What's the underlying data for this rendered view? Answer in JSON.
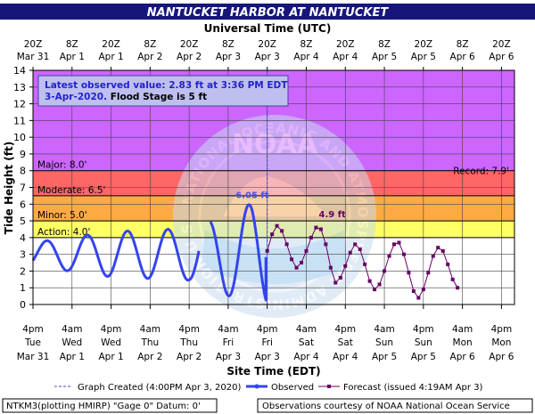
{
  "chart_data": {
    "type": "line",
    "title": "NANTUCKET HARBOR AT NANTUCKET",
    "top_axis_title": "Universal Time (UTC)",
    "xlabel": "Site Time (EDT)",
    "ylabel": "Tide Height (ft)",
    "ylim": [
      0,
      14
    ],
    "y_ticks": [
      0,
      1,
      2,
      3,
      4,
      5,
      6,
      7,
      8,
      9,
      10,
      11,
      12,
      13,
      14
    ],
    "grid": true,
    "x_start": "2020-03-31T16:00",
    "x_end": "2020-04-06T20:00",
    "bottom_ticks": [
      {
        "t": "2020-03-31T16:00",
        "line1": "4pm",
        "line2": "Tue",
        "line3": "Mar 31"
      },
      {
        "t": "2020-04-01T04:00",
        "line1": "4am",
        "line2": "Wed",
        "line3": "Apr 1"
      },
      {
        "t": "2020-04-01T16:00",
        "line1": "4pm",
        "line2": "Wed",
        "line3": "Apr 1"
      },
      {
        "t": "2020-04-02T04:00",
        "line1": "4am",
        "line2": "Thu",
        "line3": "Apr 2"
      },
      {
        "t": "2020-04-02T16:00",
        "line1": "4pm",
        "line2": "Thu",
        "line3": "Apr 2"
      },
      {
        "t": "2020-04-03T04:00",
        "line1": "4am",
        "line2": "Fri",
        "line3": "Apr 3"
      },
      {
        "t": "2020-04-03T16:00",
        "line1": "4pm",
        "line2": "Fri",
        "line3": "Apr 3"
      },
      {
        "t": "2020-04-04T04:00",
        "line1": "4am",
        "line2": "Sat",
        "line3": "Apr 4"
      },
      {
        "t": "2020-04-04T16:00",
        "line1": "4pm",
        "line2": "Sat",
        "line3": "Apr 4"
      },
      {
        "t": "2020-04-05T04:00",
        "line1": "4am",
        "line2": "Sun",
        "line3": "Apr 5"
      },
      {
        "t": "2020-04-05T16:00",
        "line1": "4pm",
        "line2": "Sun",
        "line3": "Apr 5"
      },
      {
        "t": "2020-04-06T04:00",
        "line1": "4am",
        "line2": "Mon",
        "line3": "Apr 6"
      },
      {
        "t": "2020-04-06T16:00",
        "line1": "4pm",
        "line2": "Mon",
        "line3": "Apr 6"
      }
    ],
    "top_ticks": [
      {
        "t": "2020-03-31T16:00",
        "line1": "20Z",
        "line2": "Mar 31"
      },
      {
        "t": "2020-04-01T04:00",
        "line1": "8Z",
        "line2": "Apr 1"
      },
      {
        "t": "2020-04-01T16:00",
        "line1": "20Z",
        "line2": "Apr 1"
      },
      {
        "t": "2020-04-02T04:00",
        "line1": "8Z",
        "line2": "Apr 2"
      },
      {
        "t": "2020-04-02T16:00",
        "line1": "20Z",
        "line2": "Apr 2"
      },
      {
        "t": "2020-04-03T04:00",
        "line1": "8Z",
        "line2": "Apr 3"
      },
      {
        "t": "2020-04-03T16:00",
        "line1": "20Z",
        "line2": "Apr 3"
      },
      {
        "t": "2020-04-04T04:00",
        "line1": "8Z",
        "line2": "Apr 4"
      },
      {
        "t": "2020-04-04T16:00",
        "line1": "20Z",
        "line2": "Apr 4"
      },
      {
        "t": "2020-04-05T04:00",
        "line1": "8Z",
        "line2": "Apr 5"
      },
      {
        "t": "2020-04-05T16:00",
        "line1": "20Z",
        "line2": "Apr 5"
      },
      {
        "t": "2020-04-06T04:00",
        "line1": "8Z",
        "line2": "Apr 6"
      },
      {
        "t": "2020-04-06T16:00",
        "line1": "20Z",
        "line2": "Apr 6"
      }
    ],
    "flood_categories": [
      {
        "name": "Major",
        "label": "Major: 8.0'",
        "from": 8,
        "to": 14,
        "color": "#cc66ff"
      },
      {
        "name": "Moderate",
        "label": "Moderate: 6.5'",
        "from": 6.5,
        "to": 8,
        "color": "#ff6666"
      },
      {
        "name": "Minor",
        "label": "Minor: 5.0'",
        "from": 5,
        "to": 6.5,
        "color": "#ffaa44"
      },
      {
        "name": "Action",
        "label": "Action: 4.0'",
        "from": 4,
        "to": 5,
        "color": "#ffff66"
      }
    ],
    "record": {
      "label": "Record: 7.9'",
      "value": 7.9
    },
    "graph_created": "2020-04-03T16:00",
    "info_box": {
      "line1": "Latest observed value: 2.83 ft at 3:36 PM EDT",
      "line2_date": "3-Apr-2020.",
      "line2_flood": "Flood Stage is 5 ft"
    },
    "annotations": [
      {
        "text": "6.05 ft",
        "t": "2020-04-03T11:24",
        "y": 6.05,
        "color": "#4455ee"
      },
      {
        "text": "4.9 ft",
        "t": "2020-04-04T12:00",
        "y": 4.9,
        "color": "#660066"
      }
    ],
    "tide_model": {
      "mean": 3.0,
      "period_hours": 12.42,
      "first_high": "2020-03-31T20:12",
      "observed_amplitudes": [
        {
          "t": "2020-03-31T16:00",
          "a": 0.7
        },
        {
          "t": "2020-04-01T16:00",
          "a": 1.35
        },
        {
          "t": "2020-04-02T16:00",
          "a": 1.55
        },
        {
          "t": "2020-04-03T11:24",
          "a": 3.05
        }
      ],
      "observed_gap": [
        "2020-04-02T19:00",
        "2020-04-02T22:30"
      ]
    },
    "series": [
      {
        "name": "Observed",
        "color": "#3344ee",
        "t_from": "2020-03-31T16:00",
        "t_to": "2020-04-03T15:36",
        "last_value": 2.83
      },
      {
        "name": "Forecast (issued 4:19AM Apr 3)",
        "color": "#660066",
        "points": [
          {
            "t": "2020-04-03T16:00",
            "y": 3.2
          },
          {
            "t": "2020-04-03T17:30",
            "y": 4.2
          },
          {
            "t": "2020-04-03T19:00",
            "y": 4.7
          },
          {
            "t": "2020-04-03T20:30",
            "y": 4.4
          },
          {
            "t": "2020-04-03T22:00",
            "y": 3.6
          },
          {
            "t": "2020-04-03T23:30",
            "y": 2.7
          },
          {
            "t": "2020-04-04T01:00",
            "y": 2.2
          },
          {
            "t": "2020-04-04T02:30",
            "y": 2.5
          },
          {
            "t": "2020-04-04T04:00",
            "y": 3.2
          },
          {
            "t": "2020-04-04T05:30",
            "y": 4.0
          },
          {
            "t": "2020-04-04T07:00",
            "y": 4.6
          },
          {
            "t": "2020-04-04T08:30",
            "y": 4.5
          },
          {
            "t": "2020-04-04T10:00",
            "y": 3.6
          },
          {
            "t": "2020-04-04T11:30",
            "y": 2.2
          },
          {
            "t": "2020-04-04T13:00",
            "y": 1.3
          },
          {
            "t": "2020-04-04T14:30",
            "y": 1.6
          },
          {
            "t": "2020-04-04T16:00",
            "y": 2.3
          },
          {
            "t": "2020-04-04T17:30",
            "y": 3.1
          },
          {
            "t": "2020-04-04T19:00",
            "y": 3.6
          },
          {
            "t": "2020-04-04T20:30",
            "y": 3.3
          },
          {
            "t": "2020-04-04T22:00",
            "y": 2.4
          },
          {
            "t": "2020-04-04T23:30",
            "y": 1.4
          },
          {
            "t": "2020-04-05T01:00",
            "y": 0.9
          },
          {
            "t": "2020-04-05T02:30",
            "y": 1.2
          },
          {
            "t": "2020-04-05T04:00",
            "y": 2.0
          },
          {
            "t": "2020-04-05T05:30",
            "y": 2.9
          },
          {
            "t": "2020-04-05T07:00",
            "y": 3.6
          },
          {
            "t": "2020-04-05T08:30",
            "y": 3.7
          },
          {
            "t": "2020-04-05T10:00",
            "y": 3.0
          },
          {
            "t": "2020-04-05T11:30",
            "y": 1.9
          },
          {
            "t": "2020-04-05T13:00",
            "y": 0.8
          },
          {
            "t": "2020-04-05T14:30",
            "y": 0.4
          },
          {
            "t": "2020-04-05T16:00",
            "y": 0.9
          },
          {
            "t": "2020-04-05T17:30",
            "y": 1.9
          },
          {
            "t": "2020-04-05T19:00",
            "y": 2.9
          },
          {
            "t": "2020-04-05T20:30",
            "y": 3.4
          },
          {
            "t": "2020-04-05T22:00",
            "y": 3.2
          },
          {
            "t": "2020-04-05T23:30",
            "y": 2.4
          },
          {
            "t": "2020-04-06T01:00",
            "y": 1.5
          },
          {
            "t": "2020-04-06T02:30",
            "y": 1.0
          }
        ]
      }
    ],
    "legend": {
      "graph_created": "Graph Created (4:00PM Apr 3, 2020)",
      "observed": "Observed",
      "forecast": "Forecast (issued 4:19AM Apr 3)"
    },
    "footer_left": "NTKM3(plotting HMIRP) \"Gage 0\" Datum:  0'",
    "footer_right": "Observations courtesy of NOAA National Ocean Service",
    "watermark": "NATIONAL OCEANIC AND ATMOSPHERIC ADMINISTRATION   U.S. DEPARTMENT OF COMMERCE",
    "watermark_center": "NOAA"
  }
}
